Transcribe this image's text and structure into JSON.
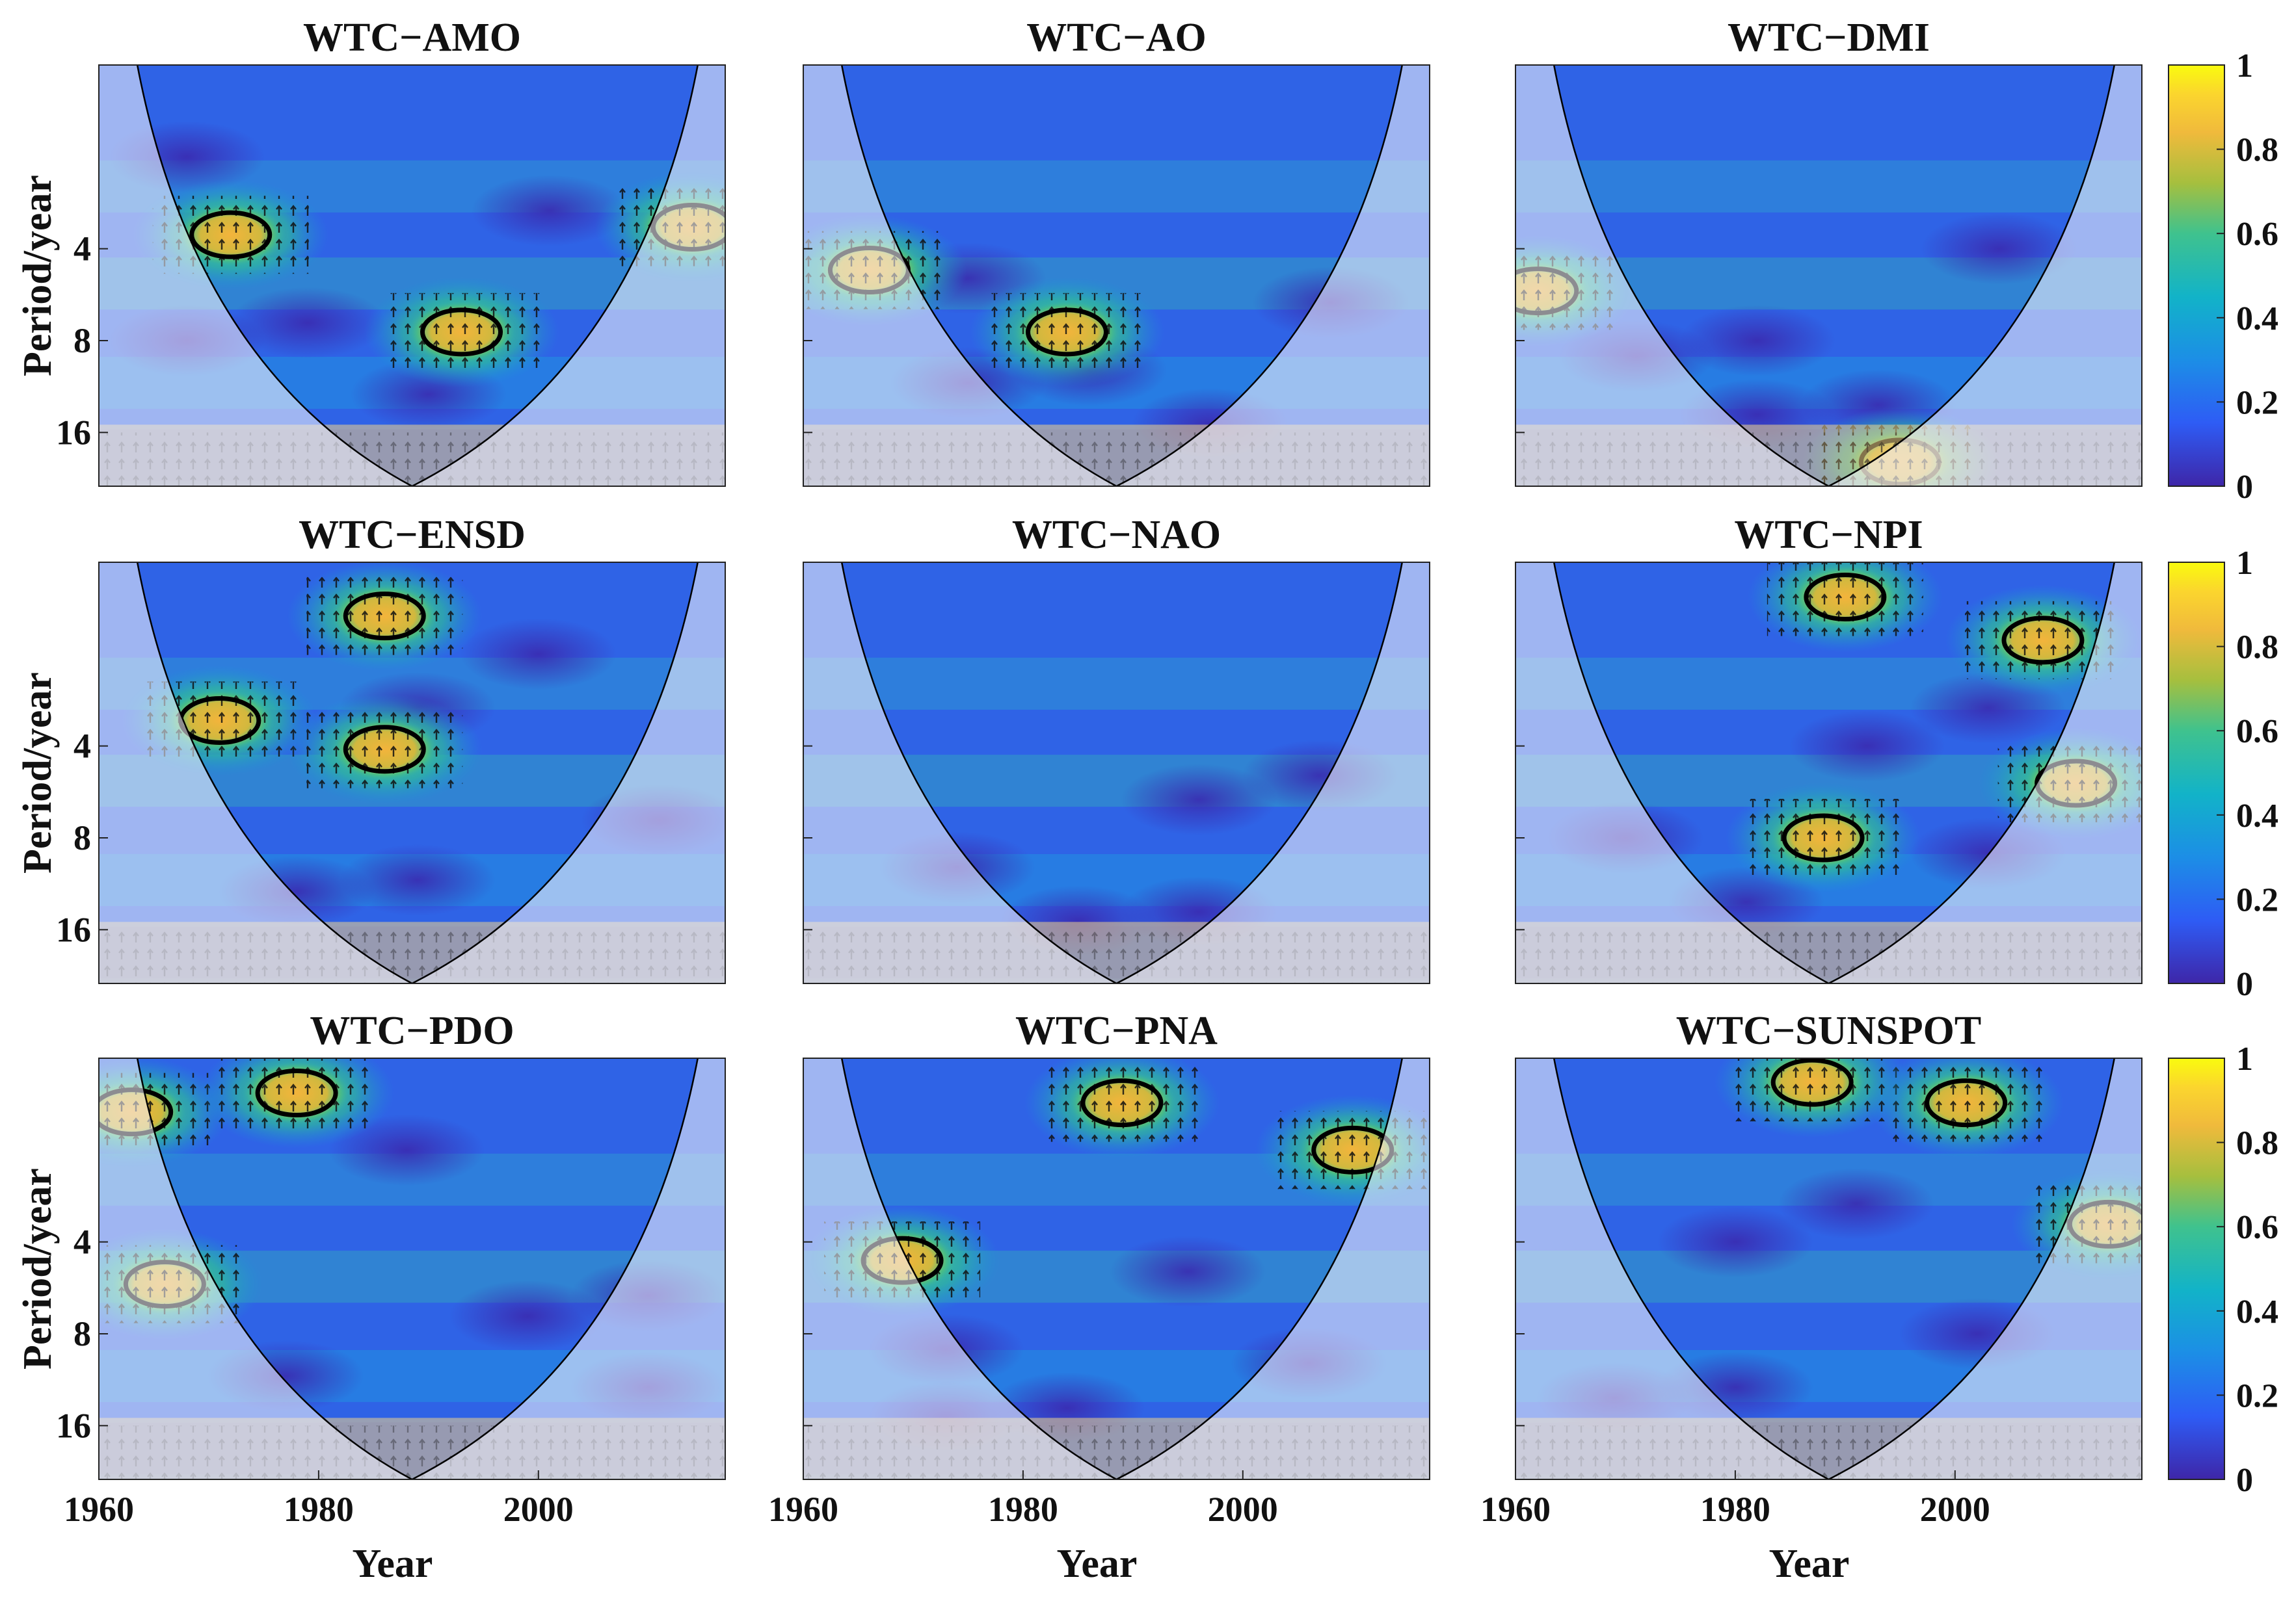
{
  "chart_data": {
    "type": "heatmap",
    "description_type": "wavelet-coherence grid (3x3)",
    "x_ticks": [
      1960,
      1980,
      2000
    ],
    "x_range": [
      1960,
      2017
    ],
    "y_ticks": [
      "4",
      "8",
      "16"
    ],
    "y_range_years": [
      1,
      24
    ],
    "xlabel": "Year",
    "ylabel": "Period/year",
    "colorbar": {
      "range": [
        0,
        1
      ],
      "ticks": [
        "0",
        "0.2",
        "0.4",
        "0.6",
        "0.8",
        "1"
      ]
    },
    "panels": [
      {
        "title": "WTC−AMO",
        "significant_regions": [
          {
            "year": 1972,
            "period": 3.6
          },
          {
            "year": 1993,
            "period": 7.5
          },
          {
            "year": 2014,
            "period": 3.4
          }
        ]
      },
      {
        "title": "WTC−AO",
        "significant_regions": [
          {
            "year": 1966,
            "period": 4.7
          },
          {
            "year": 1984,
            "period": 7.5
          }
        ]
      },
      {
        "title": "WTC−DMI",
        "significant_regions": [
          {
            "year": 1962,
            "period": 5.5
          },
          {
            "year": 1995,
            "period": 20
          }
        ]
      },
      {
        "title": "WTC−ENSD",
        "significant_regions": [
          {
            "year": 1971,
            "period": 3.3
          },
          {
            "year": 1986,
            "period": 4.1
          },
          {
            "year": 1986,
            "period": 1.5
          }
        ]
      },
      {
        "title": "WTC−NAO",
        "significant_regions": []
      },
      {
        "title": "WTC−NPI",
        "significant_regions": [
          {
            "year": 1988,
            "period": 8
          },
          {
            "year": 2011,
            "period": 5.3
          },
          {
            "year": 1990,
            "period": 1.3
          },
          {
            "year": 2008,
            "period": 1.8
          }
        ]
      },
      {
        "title": "WTC−PDO",
        "significant_regions": [
          {
            "year": 1963,
            "period": 1.5
          },
          {
            "year": 1978,
            "period": 1.3
          },
          {
            "year": 1966,
            "period": 5.5
          }
        ]
      },
      {
        "title": "WTC−PNA",
        "significant_regions": [
          {
            "year": 1969,
            "period": 4.6
          },
          {
            "year": 1989,
            "period": 1.4
          },
          {
            "year": 2010,
            "period": 2.0
          }
        ]
      },
      {
        "title": "WTC−SUNSPOT",
        "significant_regions": [
          {
            "year": 2001,
            "period": 1.4
          },
          {
            "year": 1987,
            "period": 1.2
          },
          {
            "year": 2014,
            "period": 3.5
          }
        ]
      }
    ]
  }
}
